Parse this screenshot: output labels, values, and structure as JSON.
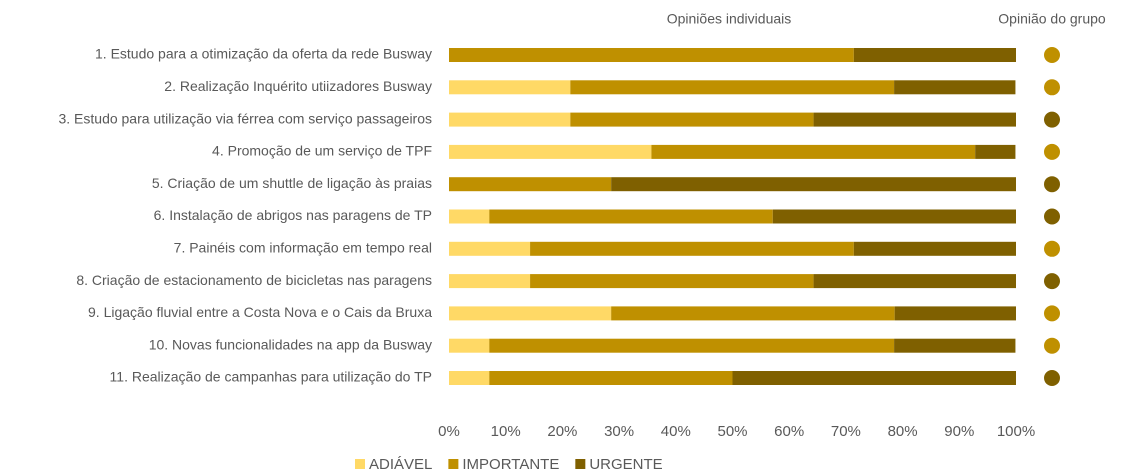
{
  "chart_data": {
    "type": "stacked_bar_horizontal",
    "title": "Opiniões individuais",
    "group_title": "Opinião do grupo",
    "categories": [
      "1. Estudo para a otimização da oferta da rede Busway",
      "2. Realização Inquérito utiizadores Busway",
      "3. Estudo para utilização via férrea com serviço passageiros",
      "4. Promoção de um serviço de TPF",
      "5. Criação de um shuttle de ligação às praias",
      "6. Instalação de abrigos nas paragens de TP",
      "7. Painéis com informação em tempo real",
      "8. Criação de estacionamento de bicicletas nas paragens",
      "9. Ligação fluvial entre a Costa Nova e o Cais da Bruxa",
      "10. Novas funcionalidades na app da Busway",
      "11. Realização de campanhas para utilização do TP"
    ],
    "series": [
      {
        "name": "ADIÁVEL",
        "color": "#FFD966",
        "values": [
          0,
          21.4,
          21.4,
          35.7,
          0,
          7.1,
          14.3,
          14.3,
          28.6,
          7.1,
          7.1
        ]
      },
      {
        "name": "IMPORTANTE",
        "color": "#BF9000",
        "values": [
          71.4,
          57.1,
          42.9,
          57.1,
          28.6,
          50,
          57.1,
          50,
          50,
          71.4,
          42.9
        ]
      },
      {
        "name": "URGENTE",
        "color": "#7F6000",
        "values": [
          28.6,
          21.4,
          35.7,
          7.1,
          71.4,
          42.9,
          28.6,
          35.7,
          21.4,
          21.4,
          50
        ]
      }
    ],
    "group_colors": [
      "#BF9000",
      "#BF9000",
      "#7F6000",
      "#BF9000",
      "#7F6000",
      "#7F6000",
      "#BF9000",
      "#7F6000",
      "#BF9000",
      "#BF9000",
      "#7F6000"
    ],
    "xlim": [
      0,
      100
    ],
    "xticks": [
      {
        "value": 0,
        "label": "0%"
      },
      {
        "value": 10,
        "label": "10%"
      },
      {
        "value": 20,
        "label": "20%"
      },
      {
        "value": 30,
        "label": "30%"
      },
      {
        "value": 40,
        "label": "40%"
      },
      {
        "value": 50,
        "label": "50%"
      },
      {
        "value": 60,
        "label": "60%"
      },
      {
        "value": 70,
        "label": "70%"
      },
      {
        "value": 80,
        "label": "80%"
      },
      {
        "value": 90,
        "label": "90%"
      },
      {
        "value": 100,
        "label": "100%"
      }
    ],
    "legend": "bottom"
  }
}
